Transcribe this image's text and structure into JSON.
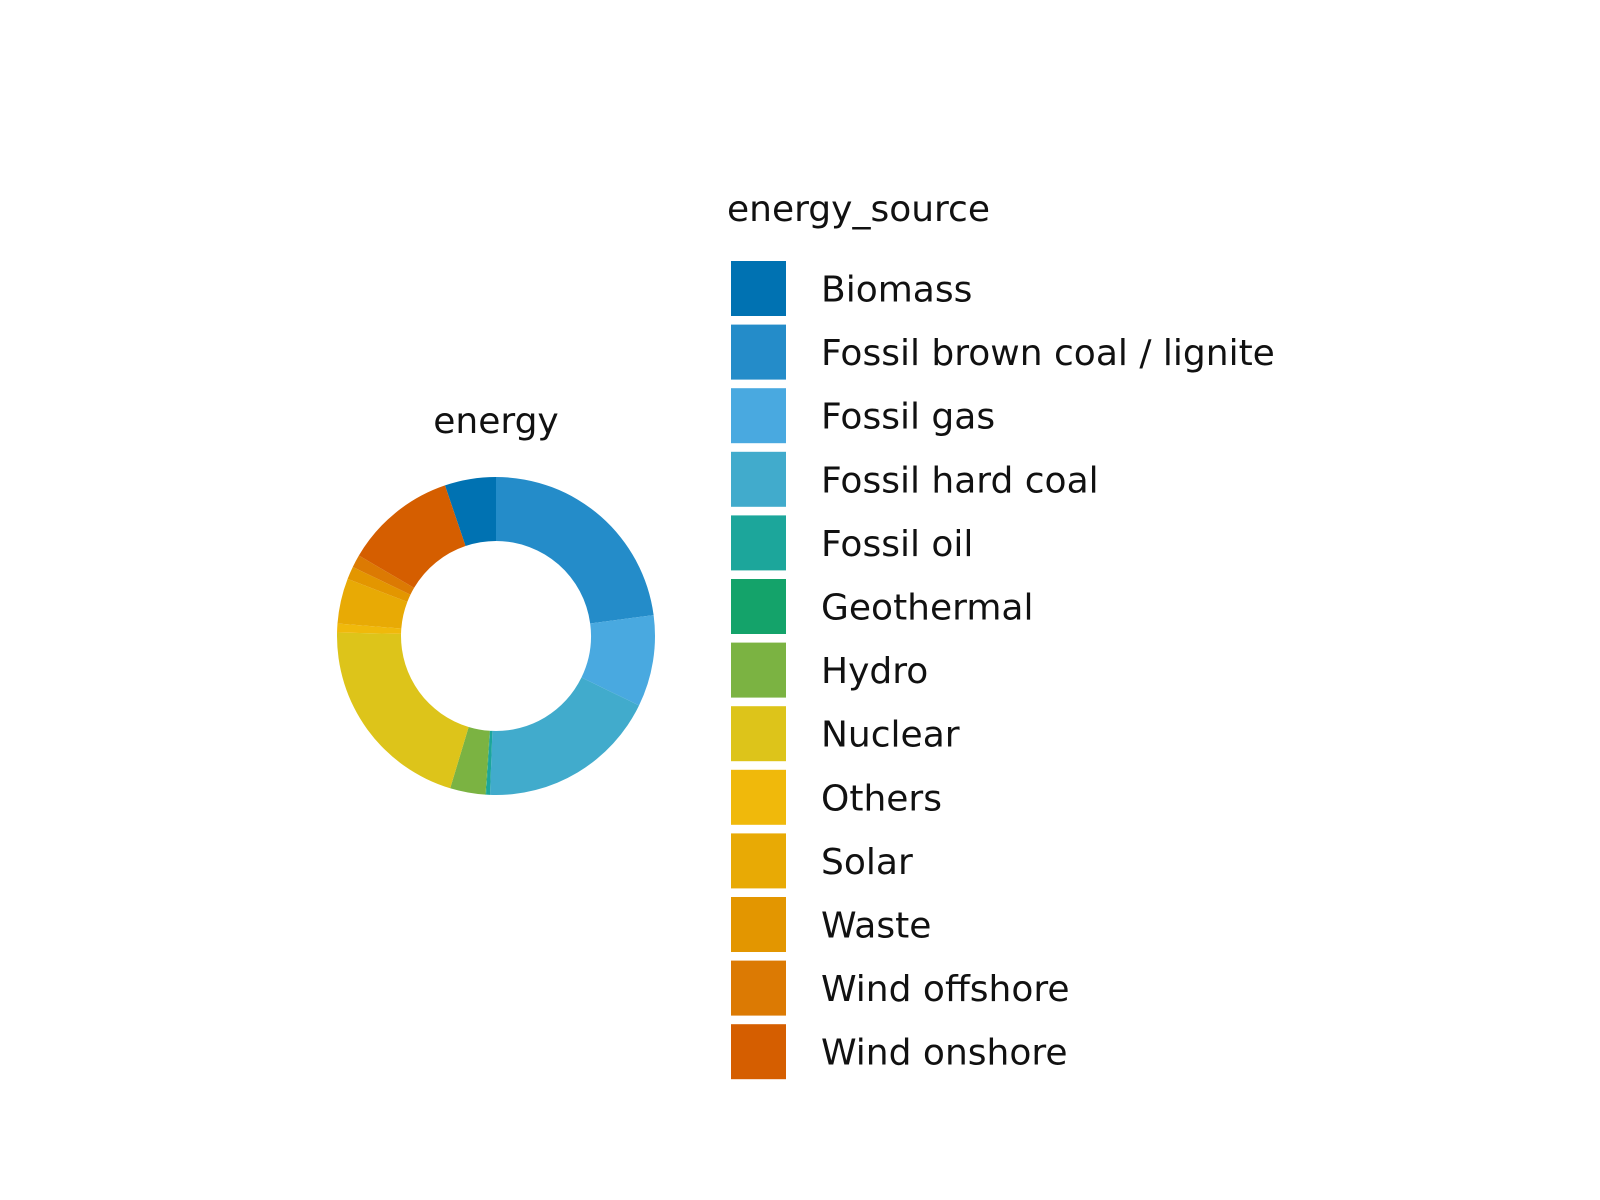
{
  "chart_data": {
    "type": "pie",
    "donut": true,
    "title": "energy",
    "legend_title": "energy_source",
    "legend_position": "right",
    "slices": [
      {
        "label": "Biomass",
        "value": 5.2,
        "color": "#0072B2"
      },
      {
        "label": "Fossil brown coal / lignite",
        "value": 22.9,
        "color": "#248CC9"
      },
      {
        "label": "Fossil gas",
        "value": 9.3,
        "color": "#49A9E0"
      },
      {
        "label": "Fossil hard coal",
        "value": 18.4,
        "color": "#41ABCC"
      },
      {
        "label": "Fossil oil",
        "value": 0.4,
        "color": "#1CA69B"
      },
      {
        "label": "Geothermal",
        "value": 0.05,
        "color": "#14A36A"
      },
      {
        "label": "Hydro",
        "value": 3.6,
        "color": "#7BB342"
      },
      {
        "label": "Nuclear",
        "value": 20.7,
        "color": "#DDC41A"
      },
      {
        "label": "Others",
        "value": 0.9,
        "color": "#F0B90B"
      },
      {
        "label": "Solar",
        "value": 4.6,
        "color": "#E8AA05"
      },
      {
        "label": "Waste",
        "value": 1.3,
        "color": "#E39600"
      },
      {
        "label": "Wind offshore",
        "value": 1.3,
        "color": "#DC7A03"
      },
      {
        "label": "Wind onshore",
        "value": 11.35,
        "color": "#D55E00"
      }
    ]
  }
}
